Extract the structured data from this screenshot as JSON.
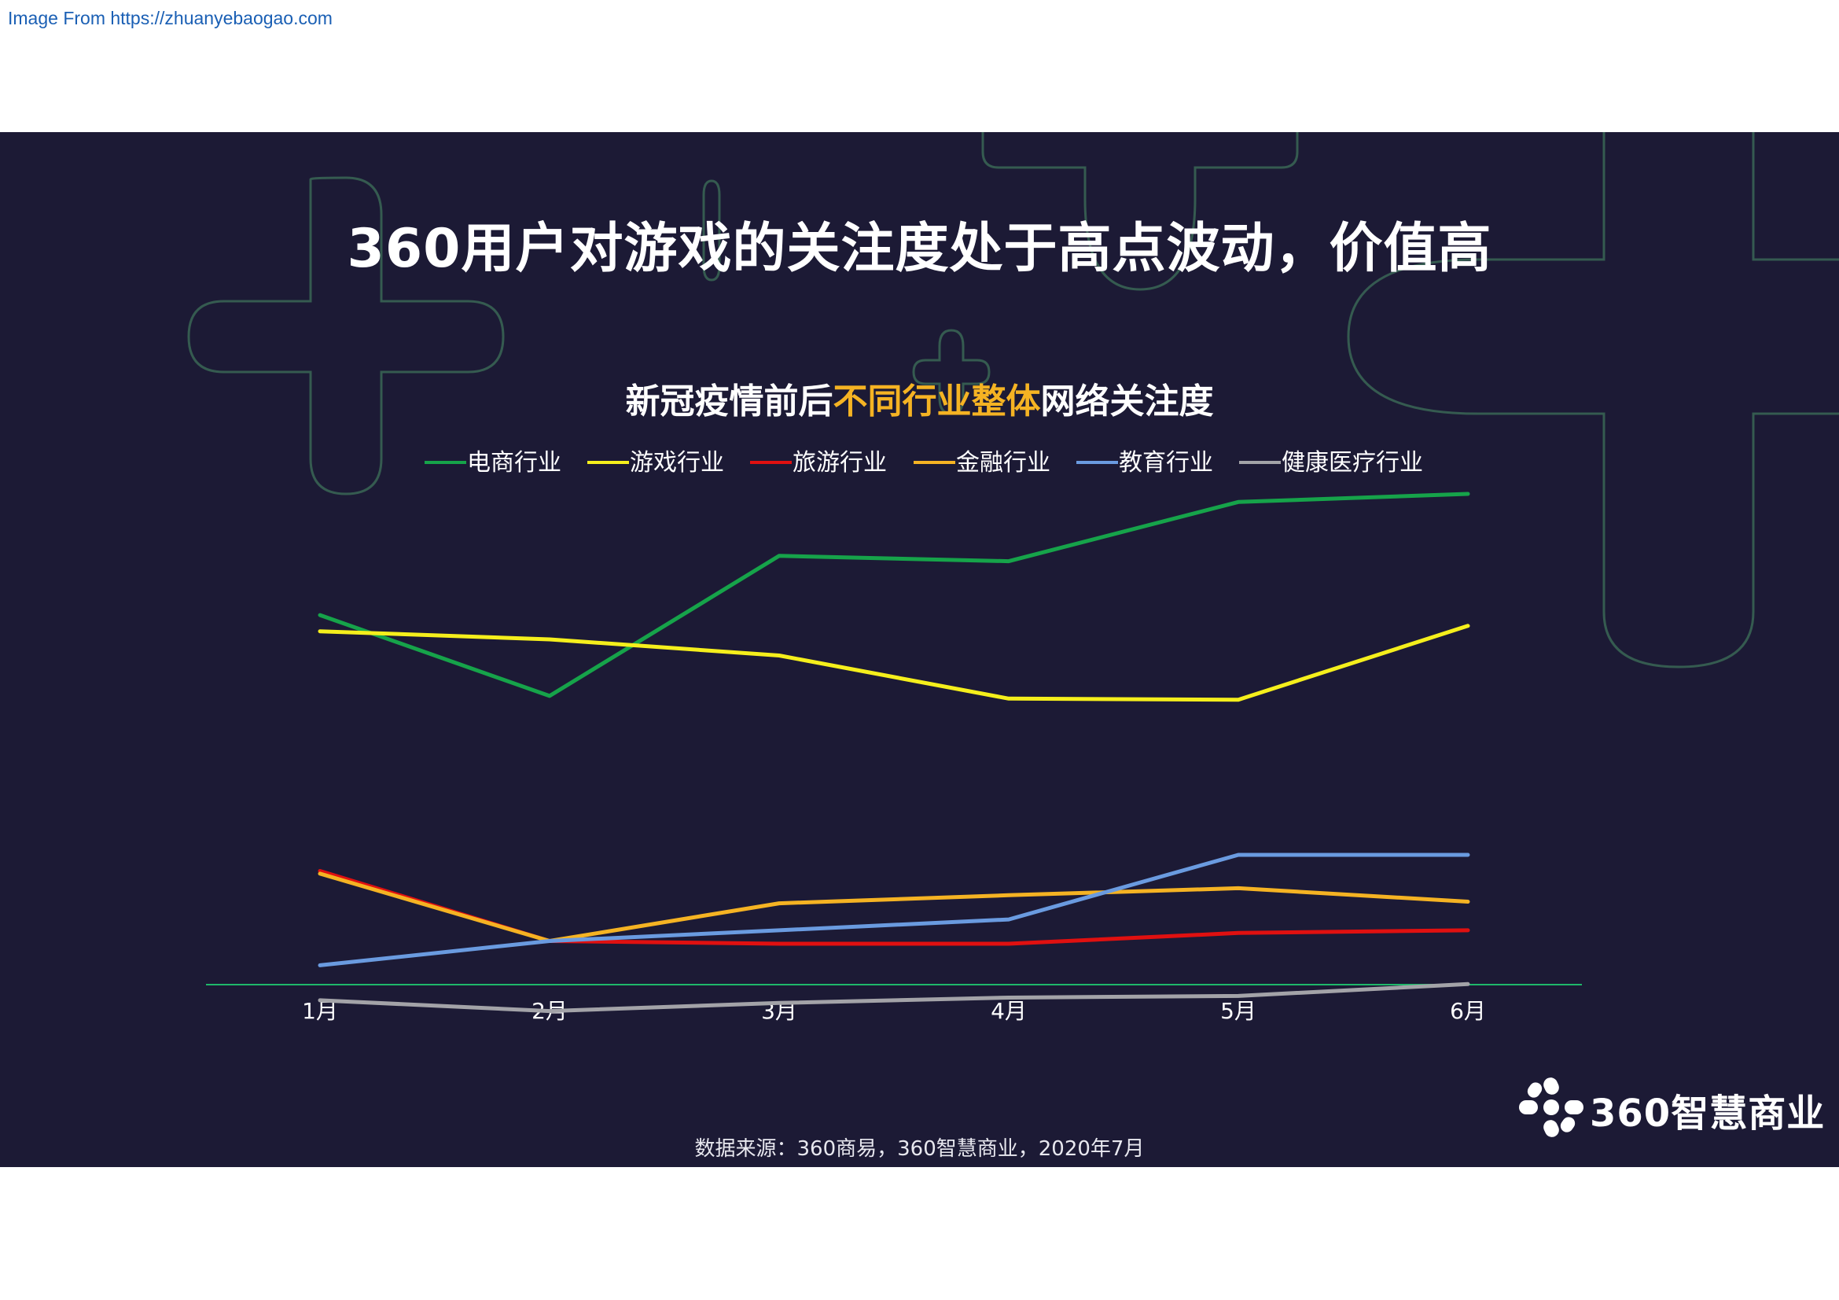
{
  "source_banner": "Image From https://zhuanyebaogao.com",
  "slide": {
    "title": "360用户对游戏的关注度处于高点波动，价值高",
    "subtitle_pre": "新冠疫情前后",
    "subtitle_highlight": "不同行业整体",
    "subtitle_post": "网络关注度",
    "footnote": "数据来源：360商易，360智慧商业，2020年7月",
    "logo_text": "360智慧商业",
    "logo_icon": "360-snowflake-logo-icon",
    "colors": {
      "background": "#1c1a35",
      "highlight": "#f5b323"
    }
  },
  "chart_data": {
    "type": "line",
    "categories": [
      "1月",
      "2月",
      "3月",
      "4月",
      "5月",
      "6月"
    ],
    "ylim": [
      0,
      100
    ],
    "grid": false,
    "legend_position": "top-center",
    "series": [
      {
        "name": "电商行业",
        "color": "#16a34a",
        "values": [
          77.5,
          62.5,
          88.5,
          87.5,
          98.5,
          100
        ]
      },
      {
        "name": "游戏行业",
        "color": "#f5ef1c",
        "values": [
          74.5,
          73,
          70,
          62,
          61.8,
          75.5
        ]
      },
      {
        "name": "旅游行业",
        "color": "#e01010",
        "values": [
          30,
          17,
          16.5,
          16.5,
          18.5,
          19
        ]
      },
      {
        "name": "金融行业",
        "color": "#f5b323",
        "values": [
          29.5,
          17,
          24,
          25.5,
          26.8,
          24.3
        ]
      },
      {
        "name": "教育行业",
        "color": "#6a9be0",
        "values": [
          12.5,
          17,
          19,
          21,
          33,
          33
        ]
      },
      {
        "name": "健康医疗行业",
        "color": "#a3a3a8",
        "values": [
          6,
          4,
          5.5,
          6.5,
          6.8,
          9
        ]
      }
    ]
  }
}
